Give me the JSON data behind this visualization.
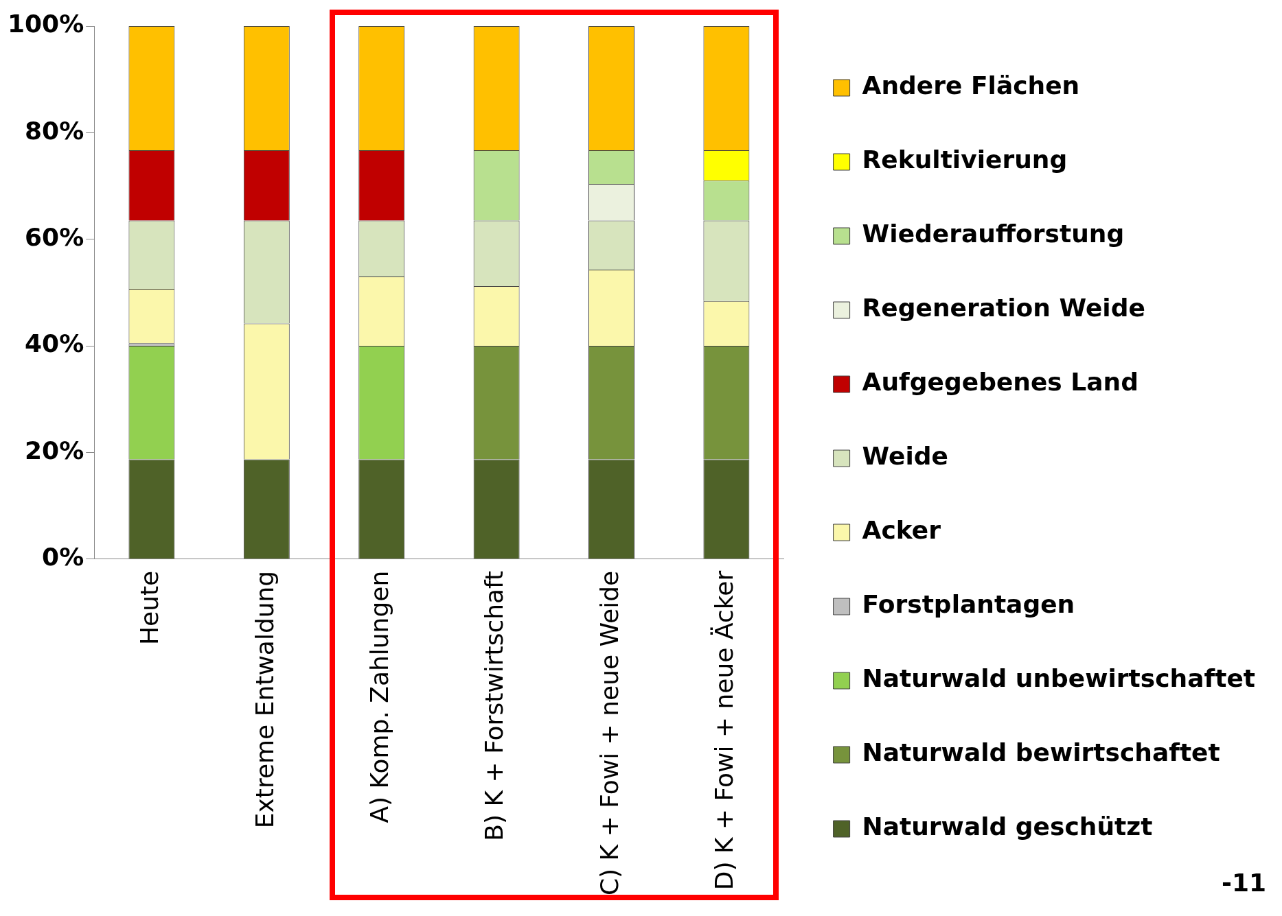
{
  "chart_data": {
    "type": "bar",
    "stacked": true,
    "categories": [
      "Heute",
      "Extreme Entwaldung",
      "A) Komp. Zahlungen",
      "B) K + Forstwirtschaft",
      "C) K + Fowi + neue Weide",
      "D) K + Fowi + neue Äcker"
    ],
    "ylim": [
      0,
      100
    ],
    "yticks": [
      {
        "value": 0,
        "label": "0%"
      },
      {
        "value": 20,
        "label": "20%"
      },
      {
        "value": 40,
        "label": "40%"
      },
      {
        "value": 60,
        "label": "60%"
      },
      {
        "value": 80,
        "label": "80%"
      },
      {
        "value": 100,
        "label": "100%"
      }
    ],
    "grid": false,
    "legend": "right",
    "annotations": [
      "-11"
    ],
    "series": [
      {
        "name": "Naturwald geschützt",
        "color": "#4f6228",
        "values": [
          18.7,
          18.7,
          18.7,
          18.7,
          18.7,
          18.7
        ]
      },
      {
        "name": "Naturwald bewirtschaftet",
        "color": "#77933c",
        "values": [
          null,
          null,
          null,
          21.3,
          21.3,
          21.3
        ]
      },
      {
        "name": "Naturwald unbewirtschaftet",
        "color": "#92d050",
        "values": [
          21.3,
          null,
          21.3,
          null,
          null,
          null
        ]
      },
      {
        "name": "Forstplantagen",
        "color": "#bfbfbf",
        "values": [
          0.5,
          null,
          null,
          null,
          null,
          null
        ]
      },
      {
        "name": "Acker",
        "color": "#fbf7ab",
        "values": [
          10.2,
          25.5,
          13,
          11.2,
          14.3,
          8.4
        ]
      },
      {
        "name": "Weide",
        "color": "#d7e4bd",
        "values": [
          12.8,
          19.3,
          10.5,
          12.3,
          9.2,
          15.1
        ]
      },
      {
        "name": "Aufgegebenes Land",
        "color": "#c00000",
        "values": [
          13.2,
          13.2,
          13.2,
          null,
          null,
          null
        ]
      },
      {
        "name": "Regeneration Weide",
        "color": "#ebf1de",
        "values": [
          null,
          null,
          null,
          null,
          6.9,
          null
        ]
      },
      {
        "name": "Wiederaufforstung",
        "color": "#b8e08f",
        "values": [
          null,
          null,
          null,
          13.2,
          6.3,
          7.5
        ]
      },
      {
        "name": "Rekultivierung",
        "color": "#ffff00",
        "values": [
          null,
          null,
          null,
          null,
          null,
          5.7
        ]
      },
      {
        "name": "Andere Flächen",
        "color": "#ffc000",
        "values": [
          23.3,
          23.3,
          23.3,
          23.3,
          23.3,
          23.3
        ]
      }
    ]
  }
}
